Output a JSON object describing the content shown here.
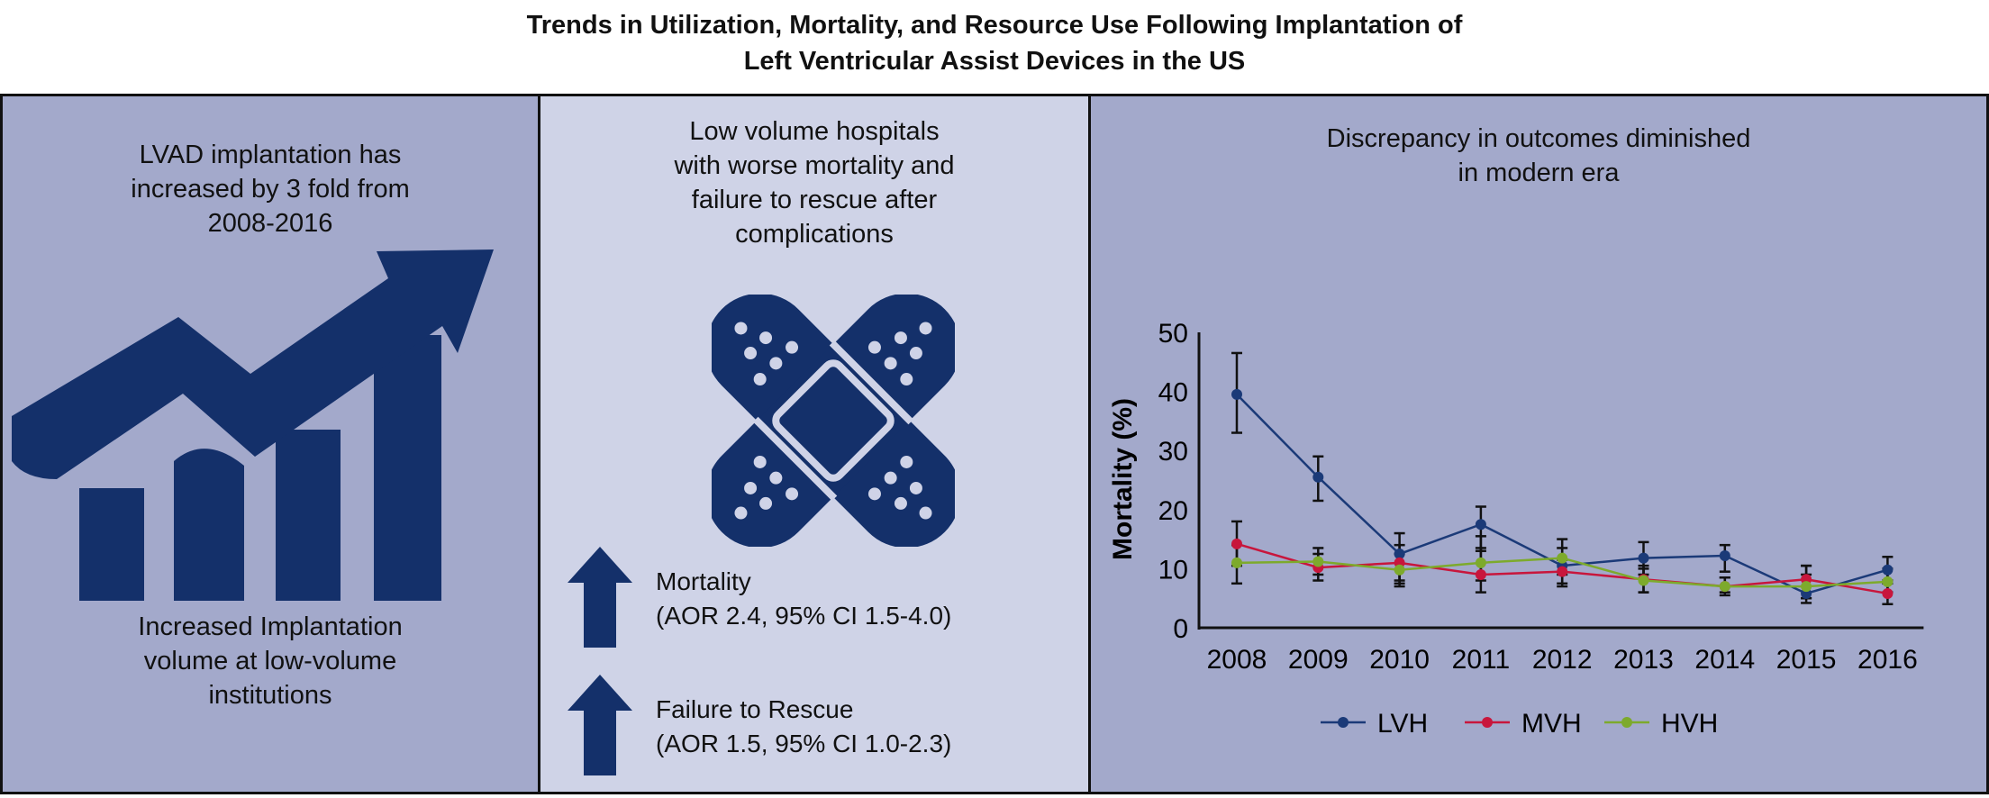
{
  "title": {
    "line1": "Trends in Utilization, Mortality, and Resource Use Following  Implantation of",
    "line2": "Left Ventricular Assist Devices in the US"
  },
  "panel1": {
    "heading": [
      "LVAD implantation has",
      "increased by 3 fold from",
      "2008-2016"
    ],
    "footer": [
      "Increased Implantation",
      "volume at low-volume",
      "institutions"
    ],
    "icon": "trend-up-bar-chart-icon"
  },
  "panel2": {
    "heading": [
      "Low volume hospitals",
      "with worse mortality and",
      "failure to rescue after",
      "complications"
    ],
    "icon": "bandage-cross-icon",
    "stats": [
      {
        "label": "Mortality",
        "detail": "(AOR 2.4, 95% CI 1.5-4.0)",
        "icon": "arrow-up-icon"
      },
      {
        "label": "Failure to Rescue",
        "detail": "(AOR 1.5, 95% CI 1.0-2.3)",
        "icon": "arrow-up-icon"
      }
    ]
  },
  "panel3": {
    "heading": [
      "Discrepancy in outcomes diminished",
      "in modern era"
    ]
  },
  "colors": {
    "navy": "#14306a",
    "panel": "#a3a9cb",
    "panel_light": "#cfd3e7",
    "LVH": "#1b3a78",
    "MVH": "#c8163c",
    "HVH": "#7daa2c"
  },
  "chart_data": {
    "type": "line",
    "title": "",
    "xlabel": "",
    "ylabel": "Mortality (%)",
    "ylim": [
      0,
      50
    ],
    "yticks": [
      "0",
      "10",
      "20",
      "30",
      "40",
      "50"
    ],
    "categories": [
      "2008",
      "2009",
      "2010",
      "2011",
      "2012",
      "2013",
      "2014",
      "2015",
      "2016"
    ],
    "legend_position": "bottom",
    "grid": false,
    "series": [
      {
        "name": "LVH",
        "color": "#1b3a78",
        "values": [
          39.5,
          25.5,
          12.5,
          17.5,
          10.5,
          11.8,
          12.2,
          5.8,
          9.8
        ],
        "ci_low": [
          33,
          21.5,
          7.5,
          13,
          7.5,
          9,
          9.5,
          4.2,
          7.5
        ],
        "ci_high": [
          46.5,
          29,
          16,
          20.5,
          13.5,
          14.5,
          14,
          10.5,
          12
        ]
      },
      {
        "name": "MVH",
        "color": "#c8163c",
        "values": [
          14.2,
          10.2,
          11.0,
          9.0,
          9.5,
          8.2,
          7.0,
          8.2,
          5.8
        ],
        "ci_low": [
          10.5,
          8,
          8,
          6,
          7,
          6,
          5.5,
          5,
          4
        ],
        "ci_high": [
          18,
          12.5,
          14,
          13.5,
          11.5,
          10,
          8.5,
          10.5,
          8
        ]
      },
      {
        "name": "HVH",
        "color": "#7daa2c",
        "values": [
          11.0,
          11.2,
          9.8,
          11.0,
          11.8,
          8.0,
          7.0,
          7.0,
          7.8
        ],
        "ci_low": [
          7.5,
          9,
          7,
          8,
          9,
          6,
          6,
          5,
          6
        ],
        "ci_high": [
          14,
          13.5,
          12.5,
          15.5,
          15,
          10.5,
          8.5,
          9,
          10
        ]
      }
    ]
  }
}
